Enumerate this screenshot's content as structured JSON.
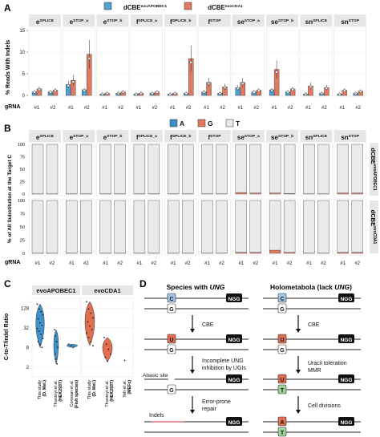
{
  "colors": {
    "cbe_apobec": "#4f9fd0",
    "cbe_cda": "#e07a63",
    "sub_A": "#3d8fc4",
    "sub_G": "#e2775f",
    "sub_T": "#eaeaea",
    "strip": "#e6e6e6",
    "apobec_violin": "#3f93cc",
    "cda_violin": "#e06f52",
    "box_gray": "#eeeeee",
    "uracil": "#e06f52",
    "cytosine": "#9fc5e8",
    "thymine": "#9bd39b",
    "adenine": "#e06f52",
    "indel_line": "#e07070"
  },
  "panel_labels": {
    "a": "A",
    "b": "B",
    "c": "C",
    "d": "D"
  },
  "panel_a": {
    "legend": [
      {
        "base": "dCBE",
        "sup": "evoAPOBEC1",
        "color_key": "cbe_apobec"
      },
      {
        "base": "dCBE",
        "sup": "evoCDA1",
        "color_key": "cbe_cda"
      }
    ],
    "ylabel": "% Reads With Indels",
    "xlabel": "gRNA",
    "ticks": [
      "0",
      "5",
      "10",
      "15"
    ]
  },
  "panel_b": {
    "legend_items": [
      "A",
      "G",
      "T"
    ],
    "ylabel": "% of All Substitution at the Target C",
    "xlabel": "gRNA",
    "ticks": [
      "0",
      "25",
      "50",
      "75",
      "100"
    ],
    "row_labels": [
      {
        "base": "dCBE",
        "sup": "evoAPOBEC1"
      },
      {
        "base": "dCBE",
        "sup": "evoCDA1"
      }
    ]
  },
  "facets": [
    {
      "base": "e",
      "sup": "SPLICE"
    },
    {
      "base": "e",
      "sup": "STOP_a"
    },
    {
      "base": "e",
      "sup": "STOP_b"
    },
    {
      "base": "f",
      "sup": "SPLICE_a"
    },
    {
      "base": "f",
      "sup": "SPLICE_b"
    },
    {
      "base": "f",
      "sup": "STOP"
    },
    {
      "base": "se",
      "sup": "STOP_a"
    },
    {
      "base": "se",
      "sup": "STOP_b"
    },
    {
      "base": "sn",
      "sup": "SPLICE"
    },
    {
      "base": "sn",
      "sup": "STOP"
    }
  ],
  "grna_ticks": [
    "#1",
    "#2"
  ],
  "panel_c": {
    "ylabel": "C-to-T/indel Ratio",
    "ticks": [
      "2",
      "8",
      "32",
      "128"
    ],
    "groups": [
      {
        "label": "evoAPOBEC1"
      },
      {
        "label": "evoCDA1"
      }
    ],
    "categories": [
      {
        "main": "This study",
        "sub": "(D. Mel.)"
      },
      {
        "main": "Thuronyi et al.",
        "sub": "(HEK293T)"
      },
      {
        "main": "Cornean et al.",
        "sub": "(Fish species)"
      },
      {
        "main": "This study",
        "sub": "(D. Mel.)"
      },
      {
        "main": "Thuronyi et al.",
        "sub": "(HEK293T)"
      },
      {
        "main": "Yeh et al.",
        "sub": "(MEFs)"
      }
    ]
  },
  "panel_d": {
    "left_title_a": "Species with ",
    "left_title_b": "UNG",
    "right_title_a": "Holometabola (lack ",
    "right_title_b": "UNG",
    "right_title_c": ")",
    "ngg": "NGG",
    "steps_left": [
      "CBE",
      "Incomplete UNG",
      "inhibition by UGIs",
      "Error-prone",
      "repair"
    ],
    "steps_right": [
      "CBE",
      "Uracil toleration",
      "MMR",
      "Cell divisions"
    ],
    "abasic": "Abasic site",
    "indels": "Indels",
    "bases": {
      "C": "C",
      "G": "G",
      "U": "U",
      "T": "T",
      "A": "A"
    }
  },
  "chart_data": [
    {
      "type": "bar",
      "title": "",
      "ylabel": "% Reads With Indels",
      "xlabel": "gRNA",
      "ylim": [
        0,
        15
      ],
      "categories": [
        "eSPLICE #1",
        "eSPLICE #2",
        "eSTOP_a #1",
        "eSTOP_a #2",
        "eSTOP_b #1",
        "eSTOP_b #2",
        "fSPLICE_a #1",
        "fSPLICE_a #2",
        "fSPLICE_b #1",
        "fSPLICE_b #2",
        "fSTOP #1",
        "fSTOP #2",
        "seSTOP_a #1",
        "seSTOP_a #2",
        "seSTOP_b #1",
        "seSTOP_b #2",
        "snSPLICE #1",
        "snSPLICE #2",
        "snSTOP #1",
        "snSTOP #2"
      ],
      "series": [
        {
          "name": "dCBEevoAPOBEC1",
          "values": [
            0.8,
            0.8,
            2.5,
            1.3,
            0.3,
            0.5,
            0.3,
            0.5,
            0.3,
            0.5,
            0.8,
            0.5,
            1.8,
            0.8,
            1.3,
            0.8,
            0.3,
            0.5,
            0.3,
            0.5
          ]
        },
        {
          "name": "dCBEevoCDA1",
          "values": [
            1.5,
            1.2,
            3.5,
            9.5,
            0.5,
            0.8,
            0.5,
            0.8,
            0.5,
            8.5,
            3.0,
            2.0,
            3.0,
            1.2,
            6.0,
            1.5,
            2.2,
            1.8,
            1.2,
            1.0
          ]
        }
      ]
    },
    {
      "type": "bar",
      "title": "",
      "ylabel": "% of All Substitution at the Target C",
      "xlabel": "gRNA",
      "ylim": [
        0,
        100
      ],
      "stacked": true,
      "series": [
        {
          "name": "A",
          "values": [
            0,
            0,
            0,
            0,
            0,
            0,
            0,
            0,
            0,
            0,
            0,
            0,
            0,
            0,
            0,
            0,
            0,
            0,
            0,
            0,
            0,
            0,
            0,
            0,
            0,
            0,
            0,
            0,
            0,
            0,
            0,
            0,
            0,
            0,
            0,
            0,
            0,
            0,
            0,
            0
          ]
        },
        {
          "name": "G",
          "values": [
            0.5,
            0.5,
            0.5,
            0.5,
            0.5,
            0.5,
            0.5,
            0.5,
            0.5,
            0.5,
            0.5,
            0.5,
            3,
            2,
            2,
            1,
            0.5,
            0.5,
            2,
            2,
            0.5,
            0.5,
            0.5,
            0.5,
            0.5,
            0.5,
            0.5,
            0.5,
            0.5,
            0.5,
            0.5,
            0.5,
            2,
            2,
            6,
            2,
            0.5,
            0.5,
            2,
            2
          ]
        },
        {
          "name": "T",
          "values": [
            99.5,
            99.5,
            99.5,
            99.5,
            99.5,
            99.5,
            99.5,
            99.5,
            99.5,
            99.5,
            99.5,
            99.5,
            97,
            98,
            98,
            99,
            99.5,
            99.5,
            98,
            98,
            99.5,
            99.5,
            99.5,
            99.5,
            99.5,
            99.5,
            99.5,
            99.5,
            99.5,
            99.5,
            99.5,
            99.5,
            98,
            98,
            94,
            98,
            99.5,
            99.5,
            98,
            98
          ]
        }
      ]
    },
    {
      "type": "scatter",
      "title": "",
      "ylabel": "C-to-T/indel Ratio",
      "yscale": "log2",
      "ylim": [
        1,
        256
      ],
      "categories": [
        "This study (D. Mel.)",
        "Thuronyi et al. (HEK293T)",
        "Cornean et al. (Fish species)",
        "This study (D. Mel.)",
        "Thuronyi et al. (HEK293T)",
        "Yeh et al. (MEFs)"
      ],
      "series": [
        {
          "name": "evoAPOBEC1",
          "values": [
            [
              170,
              120,
              100,
              80,
              60,
              45,
              38,
              30,
              25,
              20,
              15,
              12,
              10,
              8
            ],
            [
              28,
              18,
              12,
              8,
              5,
              3.5,
              2.5
            ],
            [
              10,
              9,
              8
            ]
          ]
        },
        {
          "name": "evoCDA1",
          "values": [
            [
              200,
              120,
              90,
              64,
              48,
              36,
              28,
              22,
              16,
              12,
              9
            ],
            [
              16,
              10,
              7,
              5,
              4,
              3
            ],
            [
              3.2
            ]
          ]
        }
      ]
    }
  ]
}
